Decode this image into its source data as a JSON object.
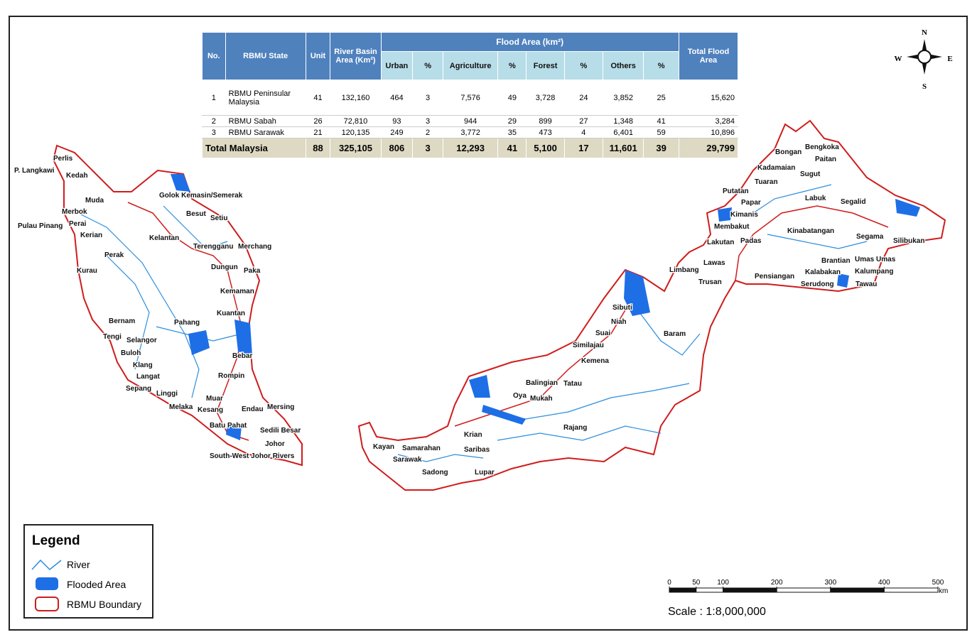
{
  "compass": {
    "n": "N",
    "s": "S",
    "e": "E",
    "w": "W"
  },
  "table": {
    "header": {
      "no": "No.",
      "state": "RBMU State",
      "unit": "Unit",
      "basin": "River Basin Area (Km²)",
      "flood": "Flood Area (km²)",
      "sub": [
        "Urban",
        "%",
        "Agriculture",
        "%",
        "Forest",
        "%",
        "Others",
        "%"
      ],
      "total": "Total Flood Area"
    },
    "rows": [
      [
        "1",
        "RBMU Peninsular Malaysia",
        "41",
        "132,160",
        "464",
        "3",
        "7,576",
        "49",
        "3,728",
        "24",
        "3,852",
        "25",
        "15,620"
      ],
      [
        "2",
        "RBMU Sabah",
        "26",
        "72,810",
        "93",
        "3",
        "944",
        "29",
        "899",
        "27",
        "1,348",
        "41",
        "3,284"
      ],
      [
        "3",
        "RBMU Sarawak",
        "21",
        "120,135",
        "249",
        "2",
        "3,772",
        "35",
        "473",
        "4",
        "6,401",
        "59",
        "10,896"
      ]
    ],
    "total": [
      "Total Malaysia",
      "88",
      "325,105",
      "806",
      "3",
      "12,293",
      "41",
      "5,100",
      "17",
      "11,601",
      "39",
      "29,799"
    ]
  },
  "map": {
    "labels": [
      "Perlis",
      "P. Langkawi",
      "Kedah",
      "Muda",
      "Merbok",
      "Pulau Pinang",
      "Perai",
      "Kerian",
      "Perak",
      "Kurau",
      "Kelantan",
      "Golok Kemasin/Semerak",
      "Besut",
      "Setiu",
      "Terengganu",
      "Merchang",
      "Dungun",
      "Paka",
      "Kemaman",
      "Kuantan",
      "Pahang",
      "Bernam",
      "Tengi",
      "Selangor",
      "Buloh",
      "Klang",
      "Langat",
      "Sepang",
      "Linggi",
      "Bebar",
      "Rompin",
      "Muar",
      "Melaka",
      "Kesang",
      "Endau",
      "Mersing",
      "Batu Pahat",
      "Sedili Besar",
      "Johor",
      "South-West Johor Rivers",
      "Kayan",
      "Samarahan",
      "Sarawak",
      "Sadong",
      "Saribas",
      "Krian",
      "Lupar",
      "Rajang",
      "Oya",
      "Mukah",
      "Balingian",
      "Tatau",
      "Kemena",
      "Similajau",
      "Suai",
      "Niah",
      "Sibuti",
      "Baram",
      "Limbang",
      "Lawas",
      "Trusan",
      "Lakutan",
      "Padas",
      "Membakut",
      "Kimanis",
      "Papar",
      "Putatan",
      "Tuaran",
      "Kadamaian",
      "Bongan",
      "Bengkoka",
      "Paitan",
      "Sugut",
      "Labuk",
      "Segalid",
      "Kinabatangan",
      "Segama",
      "Silibukan",
      "Pensiangan",
      "Kalabakan",
      "Brantian",
      "Umas Umas",
      "Serudong",
      "Kalumpang",
      "Tawau"
    ]
  },
  "legend": {
    "title": "Legend",
    "items": [
      "River",
      "Flooded Area",
      "RBMU Boundary"
    ]
  },
  "scale": {
    "ticks": [
      0,
      50,
      100,
      200,
      300,
      400,
      500
    ],
    "unit": "km",
    "text": "Scale : 1:8,000,000"
  }
}
